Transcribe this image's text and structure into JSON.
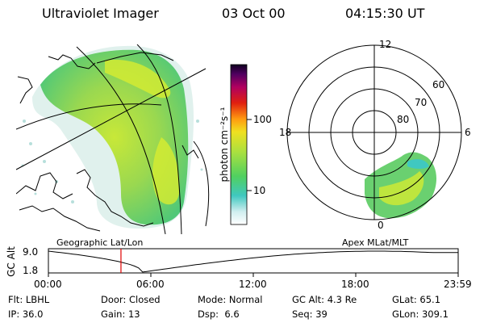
{
  "header": {
    "title": "Ultraviolet Imager",
    "date": "03 Oct 00",
    "time": "04:15:30 UT"
  },
  "colorbar": {
    "unit_label": "photon cm⁻²s⁻¹",
    "ticks": [
      "100",
      "10"
    ]
  },
  "panels": {
    "geo_label": "Geographic Lat/Lon",
    "apex_label": "Apex MLat/MLT"
  },
  "polar": {
    "mlt_labels": {
      "top": "12",
      "left": "18",
      "right": "6",
      "bottom": "0"
    },
    "lat_labels": [
      "60",
      "70",
      "80"
    ]
  },
  "altitude_plot": {
    "ylabel": "GC Alt",
    "yticks": [
      "9.0",
      "1.8"
    ],
    "xticks": [
      "00:00",
      "06:00",
      "12:00",
      "18:00",
      "23:59"
    ],
    "current_time_marker": "04:15"
  },
  "info": {
    "flt_label": "Flt:",
    "flt_value": "LBHL",
    "ip_label": "IP:",
    "ip_value": "36.0",
    "door_label": "Door:",
    "door_value": "Closed",
    "gain_label": "Gain:",
    "gain_value": "13",
    "mode_label": "Mode:",
    "mode_value": "Normal",
    "dsp_label": "Dsp:",
    "dsp_value": "6.6",
    "gcalt_label": "GC Alt:",
    "gcalt_value": "4.3 Re",
    "seq_label": "Seq:",
    "seq_value": "39",
    "glat_label": "GLat:",
    "glat_value": "65.1",
    "glon_label": "GLon:",
    "glon_value": "309.1"
  }
}
